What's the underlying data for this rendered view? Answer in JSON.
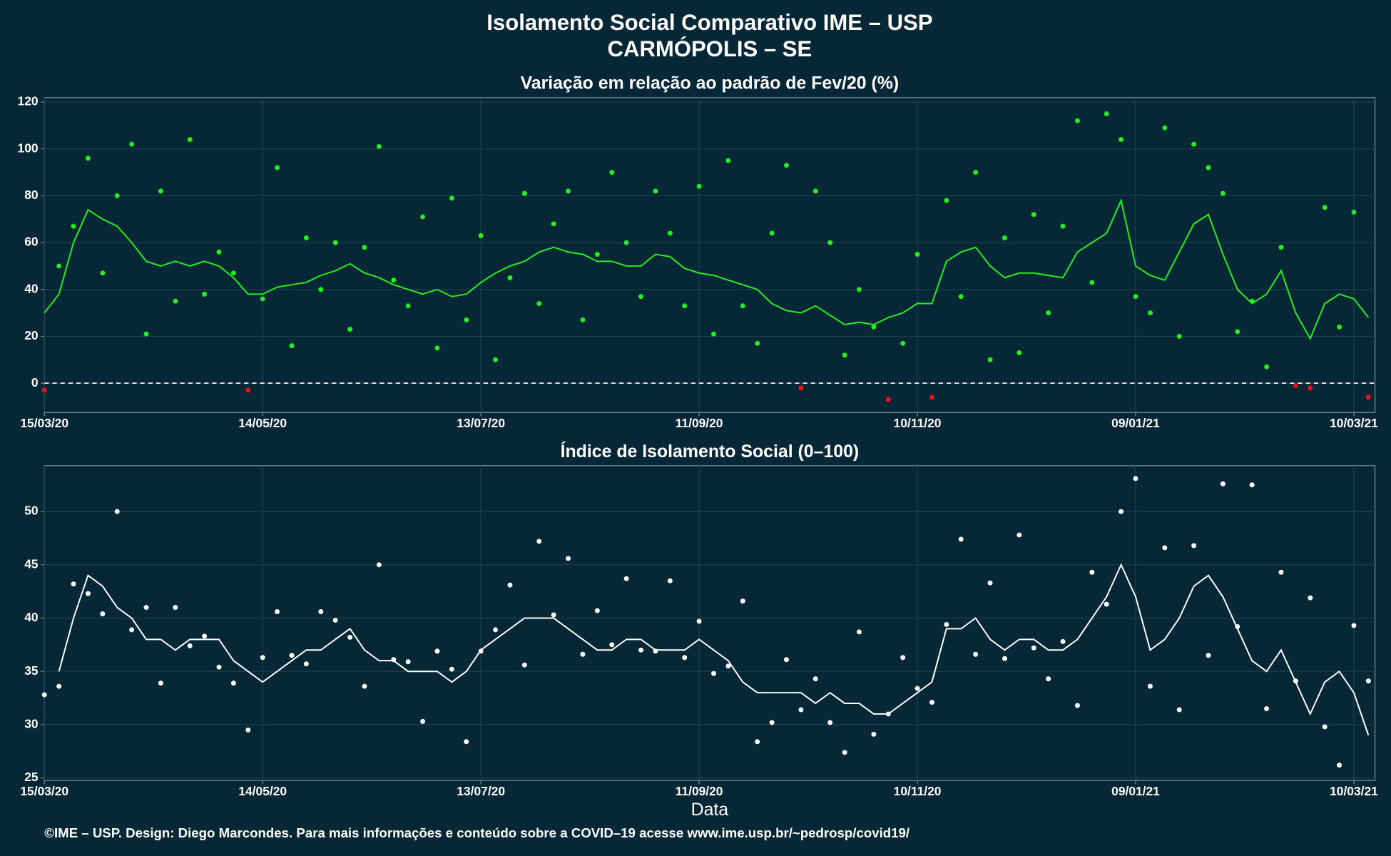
{
  "title": [
    "Isolamento Social Comparativo IME – USP",
    "CARMÓPOLIS – SE"
  ],
  "footer": "©IME – USP. Design: Diego Marcondes. Para mais informações e conteúdo sobre a COVID–19 acesse www.ime.usp.br/~pedrosp/covid19/",
  "chart_data": [
    {
      "type": "scatter",
      "title": "Variação em relação ao padrão de Fev/20 (%)",
      "x": [
        0,
        4,
        8,
        12,
        16,
        20,
        24,
        28,
        32,
        36,
        40,
        44,
        48,
        52,
        56,
        60,
        64,
        68,
        72,
        76,
        80,
        84,
        88,
        92,
        96,
        100,
        104,
        108,
        112,
        116,
        120,
        124,
        128,
        132,
        136,
        140,
        144,
        148,
        152,
        156,
        160,
        164,
        168,
        172,
        176,
        180,
        184,
        188,
        192,
        196,
        200,
        204,
        208,
        212,
        216,
        220,
        224,
        228,
        232,
        236,
        240,
        244,
        248,
        252,
        256,
        260,
        264,
        268,
        272,
        276,
        280,
        284,
        288,
        292,
        296,
        300,
        304,
        308,
        312,
        316,
        320,
        324,
        328,
        332,
        336,
        340,
        344,
        348,
        352,
        356,
        360,
        364
      ],
      "xlim": [
        0,
        365.8
      ],
      "xticks": [
        {
          "value": 0,
          "label": "15/03/20"
        },
        {
          "value": 60,
          "label": "14/05/20"
        },
        {
          "value": 120,
          "label": "13/07/20"
        },
        {
          "value": 180,
          "label": "11/09/20"
        },
        {
          "value": 240,
          "label": "10/11/20"
        },
        {
          "value": 300,
          "label": "09/01/21"
        },
        {
          "value": 360,
          "label": "10/03/21"
        }
      ],
      "ylim": [
        -12.5,
        121.9
      ],
      "yticks": [
        0,
        20,
        40,
        60,
        80,
        100,
        120
      ],
      "grid": true,
      "reference_line": 0,
      "series": [
        {
          "mode": "markers",
          "color": "#22ee22",
          "negative_color": "#ee1111",
          "values": [
            -3,
            50,
            67,
            96,
            47,
            80,
            102,
            21,
            82,
            35,
            104,
            38,
            56,
            47,
            -3,
            36,
            92,
            16,
            62,
            40,
            60,
            23,
            58,
            101,
            44,
            33,
            71,
            15,
            79,
            27,
            63,
            10,
            45,
            81,
            34,
            68,
            82,
            27,
            55,
            90,
            60,
            37,
            82,
            64,
            33,
            84,
            21,
            95,
            33,
            17,
            64,
            93,
            -2,
            82,
            60,
            12,
            40,
            24,
            -7,
            17,
            55,
            -6,
            78,
            37,
            90,
            10,
            62,
            13,
            72,
            30,
            67,
            112,
            43,
            115,
            104,
            37,
            30,
            109,
            20,
            102,
            92,
            81,
            22,
            35,
            7,
            58,
            -1,
            -2,
            75,
            24,
            73,
            -6
          ]
        },
        {
          "mode": "line",
          "color": "#22ee22",
          "values": [
            30,
            38,
            60,
            74,
            70,
            67,
            60,
            52,
            50,
            52,
            50,
            52,
            50,
            45,
            38,
            38,
            41,
            42,
            43,
            46,
            48,
            51,
            47,
            45,
            42,
            40,
            38,
            40,
            37,
            38,
            43,
            47,
            50,
            52,
            56,
            58,
            56,
            55,
            52,
            52,
            50,
            50,
            55,
            54,
            49,
            47,
            46,
            44,
            42,
            40,
            34,
            31,
            30,
            33,
            29,
            25,
            26,
            25,
            28,
            30,
            34,
            34,
            52,
            56,
            58,
            50,
            45,
            47,
            47,
            46,
            45,
            56,
            60,
            64,
            78,
            50,
            46,
            44,
            56,
            68,
            72,
            55,
            40,
            34,
            38,
            48,
            30,
            19,
            34,
            38,
            36,
            28
          ]
        }
      ]
    },
    {
      "type": "scatter",
      "title": "Índice de Isolamento Social (0–100)",
      "xlabel": "Data",
      "x": [
        0,
        4,
        8,
        12,
        16,
        20,
        24,
        28,
        32,
        36,
        40,
        44,
        48,
        52,
        56,
        60,
        64,
        68,
        72,
        76,
        80,
        84,
        88,
        92,
        96,
        100,
        104,
        108,
        112,
        116,
        120,
        124,
        128,
        132,
        136,
        140,
        144,
        148,
        152,
        156,
        160,
        164,
        168,
        172,
        176,
        180,
        184,
        188,
        192,
        196,
        200,
        204,
        208,
        212,
        216,
        220,
        224,
        228,
        232,
        236,
        240,
        244,
        248,
        252,
        256,
        260,
        264,
        268,
        272,
        276,
        280,
        284,
        288,
        292,
        296,
        300,
        304,
        308,
        312,
        316,
        320,
        324,
        328,
        332,
        336,
        340,
        344,
        348,
        352,
        356,
        360,
        364
      ],
      "xlim": [
        0,
        365.8
      ],
      "xticks": [
        {
          "value": 0,
          "label": "15/03/20"
        },
        {
          "value": 60,
          "label": "14/05/20"
        },
        {
          "value": 120,
          "label": "13/07/20"
        },
        {
          "value": 180,
          "label": "11/09/20"
        },
        {
          "value": 240,
          "label": "10/11/20"
        },
        {
          "value": 300,
          "label": "09/01/21"
        },
        {
          "value": 360,
          "label": "10/03/21"
        }
      ],
      "ylim": [
        24.75,
        54.3
      ],
      "yticks": [
        25,
        30,
        35,
        40,
        45,
        50
      ],
      "grid": true,
      "series": [
        {
          "mode": "markers",
          "color": "#ffffff",
          "values": [
            32.8,
            33.6,
            43.2,
            42.3,
            40.4,
            50,
            38.9,
            41,
            33.9,
            41,
            37.4,
            38.3,
            35.4,
            33.9,
            29.5,
            36.3,
            40.6,
            36.5,
            35.7,
            40.6,
            39.8,
            38.2,
            33.6,
            45,
            36.1,
            35.9,
            30.3,
            36.9,
            35.2,
            28.4,
            36.9,
            38.9,
            43.1,
            35.6,
            47.2,
            40.3,
            45.6,
            36.6,
            40.7,
            37.5,
            43.7,
            37,
            36.9,
            43.5,
            36.3,
            39.7,
            34.8,
            35.5,
            41.6,
            28.4,
            30.2,
            36.1,
            31.4,
            34.3,
            30.2,
            27.4,
            38.7,
            29.1,
            31,
            36.3,
            33.4,
            32.1,
            39.4,
            47.4,
            36.6,
            43.3,
            36.2,
            47.8,
            37.2,
            34.3,
            37.8,
            31.8,
            44.3,
            41.3,
            50,
            53.1,
            33.6,
            46.6,
            31.4,
            46.8,
            36.5,
            52.6,
            39.2,
            52.5,
            31.5,
            44.3,
            34.1,
            41.9,
            29.8,
            26.2,
            39.3,
            34.1
          ]
        },
        {
          "mode": "line",
          "color": "#ffffff",
          "values": [
            null,
            35,
            40,
            44,
            43,
            41,
            40,
            38,
            38,
            37,
            38,
            38,
            38,
            36,
            35,
            34,
            35,
            36,
            37,
            37,
            38,
            39,
            37,
            36,
            36,
            35,
            35,
            35,
            34,
            35,
            37,
            38,
            39,
            40,
            40,
            40,
            39,
            38,
            37,
            37,
            38,
            38,
            37,
            37,
            37,
            38,
            37,
            36,
            34,
            33,
            33,
            33,
            33,
            32,
            33,
            32,
            32,
            31,
            31,
            32,
            33,
            34,
            39,
            39,
            40,
            38,
            37,
            38,
            38,
            37,
            37,
            38,
            40,
            42,
            45,
            42,
            37,
            38,
            40,
            43,
            44,
            42,
            39,
            36,
            35,
            37,
            34,
            31,
            34,
            35,
            33,
            29
          ]
        }
      ]
    }
  ]
}
